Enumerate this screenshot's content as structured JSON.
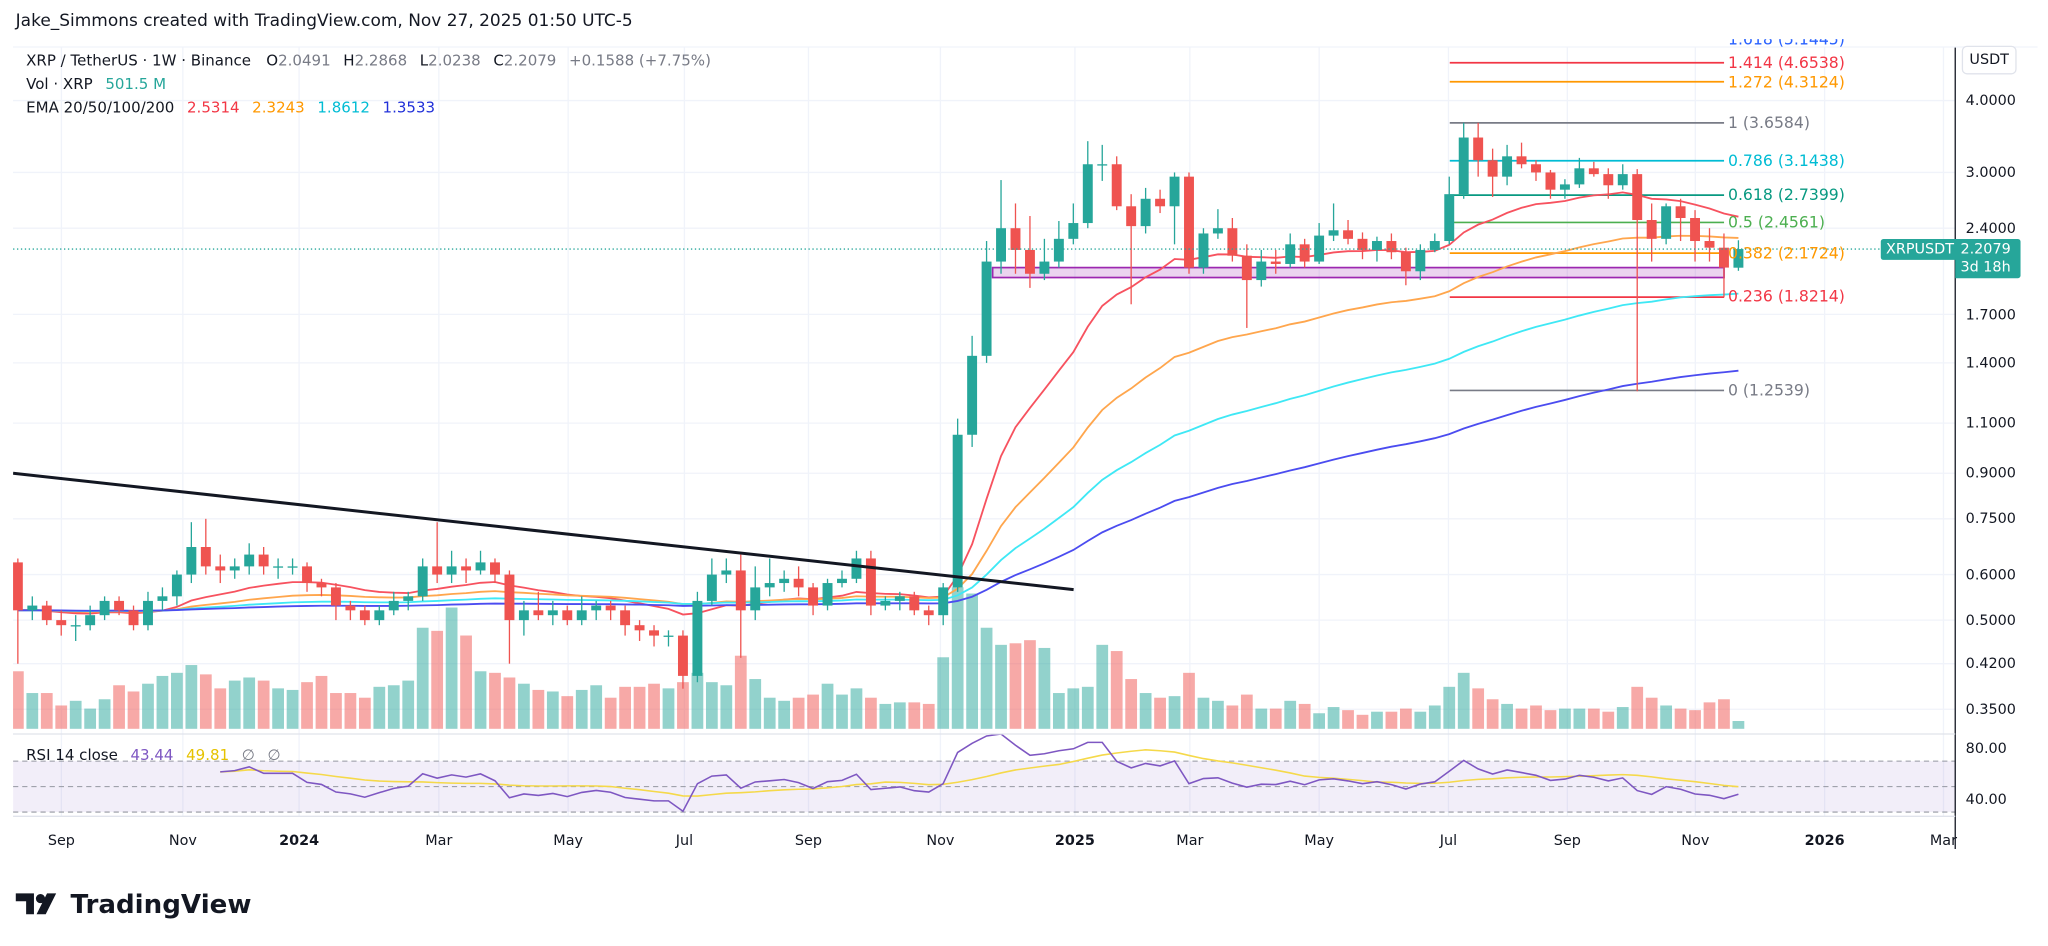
{
  "credit": "Jake_Simmons created with TradingView.com, Nov 27, 2025 01:50 UTC-5",
  "legend": {
    "symbol": "XRP / TetherUS · 1W · Binance",
    "o_label": "O",
    "o": "2.0491",
    "h_label": "H",
    "h": "2.2868",
    "l_label": "L",
    "l": "2.0238",
    "c_label": "C",
    "c": "2.2079",
    "change": "+0.1588 (+7.75%)",
    "vol_label": "Vol · XRP",
    "vol": "501.5 M",
    "ema_label": "EMA 20/50/100/200",
    "ema_values": [
      "2.5314",
      "2.3243",
      "1.8612",
      "1.3533"
    ],
    "rsi_label": "RSI 14 close",
    "rsi_values": [
      "43.44",
      "49.81",
      "∅",
      "∅"
    ]
  },
  "price_axis": {
    "currency_button": "USDT",
    "labels": [
      "4.0000",
      "3.0000",
      "2.4000",
      "1.7000",
      "1.4000",
      "1.1000",
      "0.9000",
      "0.7500",
      "0.6000",
      "0.5000",
      "0.4200",
      "0.3500"
    ],
    "rsi_labels": [
      "80.00",
      "40.00"
    ],
    "symbol_tag": "XRPUSDT",
    "last_price": "2.2079",
    "countdown": "3d 18h"
  },
  "time_axis": [
    "Sep",
    "Nov",
    "2024",
    "Mar",
    "May",
    "Jul",
    "Sep",
    "Nov",
    "2025",
    "Mar",
    "May",
    "Jul",
    "Sep",
    "Nov",
    "2026",
    "Mar"
  ],
  "logo_text": "TradingView",
  "colors": {
    "up": "#26a69a",
    "down": "#ef5350",
    "ema20": "#f7525f",
    "ema50": "#ffa64d",
    "ema100": "#3fe8f5",
    "ema200": "#4b4cf0",
    "rsi": "#7e57c2",
    "rsi_ma": "#f5d94a",
    "zone": "#9c27b0"
  },
  "chart_data": {
    "type": "candlestick",
    "interval": "1W",
    "scale": "log",
    "ylim": [
      0.33,
      5.2
    ],
    "grid": true,
    "ohlc": [
      [
        0.63,
        0.64,
        0.42,
        0.52
      ],
      [
        0.52,
        0.55,
        0.5,
        0.53
      ],
      [
        0.53,
        0.54,
        0.49,
        0.5
      ],
      [
        0.5,
        0.52,
        0.47,
        0.49
      ],
      [
        0.49,
        0.51,
        0.46,
        0.49
      ],
      [
        0.49,
        0.53,
        0.48,
        0.51
      ],
      [
        0.51,
        0.55,
        0.5,
        0.54
      ],
      [
        0.54,
        0.55,
        0.51,
        0.52
      ],
      [
        0.52,
        0.53,
        0.48,
        0.49
      ],
      [
        0.49,
        0.56,
        0.48,
        0.54
      ],
      [
        0.54,
        0.57,
        0.52,
        0.55
      ],
      [
        0.55,
        0.61,
        0.53,
        0.6
      ],
      [
        0.6,
        0.74,
        0.58,
        0.67
      ],
      [
        0.67,
        0.75,
        0.6,
        0.62
      ],
      [
        0.62,
        0.65,
        0.58,
        0.61
      ],
      [
        0.61,
        0.64,
        0.59,
        0.62
      ],
      [
        0.62,
        0.68,
        0.6,
        0.65
      ],
      [
        0.65,
        0.67,
        0.6,
        0.62
      ],
      [
        0.62,
        0.64,
        0.59,
        0.62
      ],
      [
        0.62,
        0.64,
        0.6,
        0.62
      ],
      [
        0.62,
        0.63,
        0.56,
        0.58
      ],
      [
        0.58,
        0.59,
        0.55,
        0.57
      ],
      [
        0.57,
        0.58,
        0.5,
        0.53
      ],
      [
        0.53,
        0.54,
        0.5,
        0.52
      ],
      [
        0.52,
        0.53,
        0.49,
        0.5
      ],
      [
        0.5,
        0.53,
        0.49,
        0.52
      ],
      [
        0.52,
        0.56,
        0.51,
        0.54
      ],
      [
        0.54,
        0.56,
        0.52,
        0.55
      ],
      [
        0.55,
        0.64,
        0.54,
        0.62
      ],
      [
        0.62,
        0.74,
        0.58,
        0.6
      ],
      [
        0.6,
        0.66,
        0.58,
        0.62
      ],
      [
        0.62,
        0.64,
        0.58,
        0.61
      ],
      [
        0.61,
        0.66,
        0.6,
        0.63
      ],
      [
        0.63,
        0.64,
        0.58,
        0.6
      ],
      [
        0.6,
        0.61,
        0.42,
        0.5
      ],
      [
        0.5,
        0.54,
        0.47,
        0.52
      ],
      [
        0.52,
        0.56,
        0.5,
        0.51
      ],
      [
        0.51,
        0.54,
        0.49,
        0.52
      ],
      [
        0.52,
        0.53,
        0.49,
        0.5
      ],
      [
        0.5,
        0.55,
        0.49,
        0.52
      ],
      [
        0.52,
        0.54,
        0.5,
        0.53
      ],
      [
        0.53,
        0.54,
        0.5,
        0.52
      ],
      [
        0.52,
        0.53,
        0.47,
        0.49
      ],
      [
        0.49,
        0.5,
        0.46,
        0.48
      ],
      [
        0.48,
        0.49,
        0.45,
        0.47
      ],
      [
        0.47,
        0.48,
        0.45,
        0.47
      ],
      [
        0.47,
        0.48,
        0.38,
        0.4
      ],
      [
        0.4,
        0.56,
        0.39,
        0.54
      ],
      [
        0.54,
        0.64,
        0.53,
        0.6
      ],
      [
        0.6,
        0.64,
        0.58,
        0.61
      ],
      [
        0.61,
        0.65,
        0.43,
        0.52
      ],
      [
        0.52,
        0.62,
        0.5,
        0.57
      ],
      [
        0.57,
        0.64,
        0.55,
        0.58
      ],
      [
        0.58,
        0.61,
        0.56,
        0.59
      ],
      [
        0.59,
        0.62,
        0.55,
        0.57
      ],
      [
        0.57,
        0.58,
        0.51,
        0.53
      ],
      [
        0.53,
        0.59,
        0.52,
        0.58
      ],
      [
        0.58,
        0.61,
        0.57,
        0.59
      ],
      [
        0.59,
        0.66,
        0.58,
        0.64
      ],
      [
        0.64,
        0.66,
        0.51,
        0.53
      ],
      [
        0.53,
        0.55,
        0.52,
        0.54
      ],
      [
        0.54,
        0.56,
        0.52,
        0.55
      ],
      [
        0.55,
        0.56,
        0.51,
        0.52
      ],
      [
        0.52,
        0.53,
        0.49,
        0.51
      ],
      [
        0.51,
        0.58,
        0.49,
        0.57
      ],
      [
        0.57,
        1.12,
        0.56,
        1.05
      ],
      [
        1.05,
        1.56,
        1.0,
        1.44
      ],
      [
        1.44,
        2.28,
        1.4,
        2.1
      ],
      [
        2.1,
        2.91,
        2.0,
        2.4
      ],
      [
        2.4,
        2.65,
        2.0,
        2.2
      ],
      [
        2.2,
        2.52,
        1.89,
        2.0
      ],
      [
        2.0,
        2.3,
        1.95,
        2.1
      ],
      [
        2.1,
        2.47,
        2.05,
        2.3
      ],
      [
        2.3,
        2.65,
        2.25,
        2.45
      ],
      [
        2.45,
        3.4,
        2.4,
        3.1
      ],
      [
        3.1,
        3.35,
        2.9,
        3.1
      ],
      [
        3.1,
        3.2,
        2.58,
        2.62
      ],
      [
        2.62,
        2.75,
        1.77,
        2.42
      ],
      [
        2.42,
        2.82,
        2.35,
        2.7
      ],
      [
        2.7,
        2.8,
        2.55,
        2.62
      ],
      [
        2.62,
        3.0,
        2.25,
        2.95
      ],
      [
        2.95,
        3.0,
        2.0,
        2.05
      ],
      [
        2.05,
        2.4,
        2.0,
        2.35
      ],
      [
        2.35,
        2.59,
        2.3,
        2.4
      ],
      [
        2.4,
        2.5,
        2.1,
        2.15
      ],
      [
        2.15,
        2.25,
        1.61,
        1.95
      ],
      [
        1.95,
        2.2,
        1.9,
        2.1
      ],
      [
        2.1,
        2.2,
        2.0,
        2.08
      ],
      [
        2.08,
        2.35,
        2.05,
        2.25
      ],
      [
        2.25,
        2.3,
        2.05,
        2.1
      ],
      [
        2.1,
        2.45,
        2.08,
        2.33
      ],
      [
        2.33,
        2.65,
        2.28,
        2.38
      ],
      [
        2.38,
        2.48,
        2.25,
        2.3
      ],
      [
        2.3,
        2.36,
        2.12,
        2.2
      ],
      [
        2.2,
        2.32,
        2.1,
        2.28
      ],
      [
        2.28,
        2.35,
        2.12,
        2.18
      ],
      [
        2.18,
        2.22,
        1.91,
        2.02
      ],
      [
        2.02,
        2.25,
        1.95,
        2.2
      ],
      [
        2.2,
        2.35,
        2.18,
        2.28
      ],
      [
        2.28,
        2.95,
        2.25,
        2.75
      ],
      [
        2.75,
        3.66,
        2.7,
        3.45
      ],
      [
        3.45,
        3.66,
        2.95,
        3.15
      ],
      [
        3.15,
        3.3,
        2.72,
        2.95
      ],
      [
        2.95,
        3.35,
        2.85,
        3.2
      ],
      [
        3.2,
        3.38,
        3.05,
        3.1
      ],
      [
        3.1,
        3.15,
        2.9,
        3.0
      ],
      [
        3.0,
        3.03,
        2.7,
        2.8
      ],
      [
        2.8,
        2.92,
        2.7,
        2.86
      ],
      [
        2.86,
        3.18,
        2.82,
        3.05
      ],
      [
        3.05,
        3.13,
        2.95,
        2.98
      ],
      [
        2.98,
        3.05,
        2.7,
        2.85
      ],
      [
        2.85,
        3.1,
        2.8,
        2.98
      ],
      [
        2.98,
        3.04,
        1.25,
        2.48
      ],
      [
        2.48,
        2.65,
        2.1,
        2.3
      ],
      [
        2.3,
        2.65,
        2.25,
        2.62
      ],
      [
        2.62,
        2.7,
        2.28,
        2.5
      ],
      [
        2.5,
        2.58,
        2.1,
        2.28
      ],
      [
        2.28,
        2.4,
        2.1,
        2.22
      ],
      [
        2.22,
        2.35,
        1.82,
        2.05
      ],
      [
        2.0491,
        2.2868,
        2.0238,
        2.2079
      ]
    ],
    "volume_millions": [
      3700,
      2300,
      2300,
      1500,
      1800,
      1300,
      1900,
      2800,
      2400,
      2900,
      3400,
      3600,
      4100,
      3500,
      2600,
      3100,
      3300,
      3100,
      2600,
      2500,
      3000,
      3400,
      2300,
      2300,
      2000,
      2700,
      2800,
      3100,
      6500,
      6300,
      7800,
      6000,
      3700,
      3600,
      3300,
      2900,
      2500,
      2400,
      2100,
      2500,
      2800,
      2000,
      2700,
      2700,
      2900,
      2600,
      3000,
      3600,
      3000,
      2800,
      4700,
      3200,
      2000,
      1800,
      2000,
      2200,
      2900,
      2200,
      2600,
      2000,
      1600,
      1700,
      1700,
      1600,
      4600,
      9100,
      8700,
      6500,
      5400,
      5500,
      5700,
      5200,
      2300,
      2600,
      2700,
      5400,
      5000,
      3200,
      2300,
      2000,
      2100,
      3600,
      2000,
      1800,
      1500,
      2200,
      1300,
      1300,
      1800,
      1600,
      1000,
      1400,
      1200,
      900,
      1100,
      1100,
      1300,
      1100,
      1500,
      2700,
      3600,
      2600,
      1900,
      1600,
      1300,
      1500,
      1200,
      1300,
      1300,
      1300,
      1100,
      1400,
      2700,
      2000,
      1500,
      1300,
      1200,
      1700,
      1900,
      501.5
    ],
    "ema_periods": [
      20,
      50,
      100,
      200
    ],
    "rsi_period": 14,
    "rsi_levels": [
      70,
      50,
      30
    ],
    "fib_levels": [
      {
        "label": "1.618 (5.1445)",
        "price": 5.1445,
        "color": "#2962ff"
      },
      {
        "label": "1.414 (4.6538)",
        "price": 4.6538,
        "color": "#f23645"
      },
      {
        "label": "1.272 (4.3124)",
        "price": 4.3124,
        "color": "#ff9800"
      },
      {
        "label": "1 (3.6584)",
        "price": 3.6584,
        "color": "#787b86"
      },
      {
        "label": "0.786 (3.1438)",
        "price": 3.1438,
        "color": "#00bcd4"
      },
      {
        "label": "0.618 (2.7399)",
        "price": 2.7399,
        "color": "#089981"
      },
      {
        "label": "0.5 (2.4561)",
        "price": 2.4561,
        "color": "#4caf50"
      },
      {
        "label": "0.382 (2.1724)",
        "price": 2.1724,
        "color": "#ff9800"
      },
      {
        "label": "0.236 (1.8214)",
        "price": 1.8214,
        "color": "#f23645"
      },
      {
        "label": "0 (1.2539)",
        "price": 1.2539,
        "color": "#787b86"
      }
    ],
    "support_zone": [
      1.97,
      2.05
    ],
    "trendline_prices": [
      0.9,
      0.565
    ]
  }
}
